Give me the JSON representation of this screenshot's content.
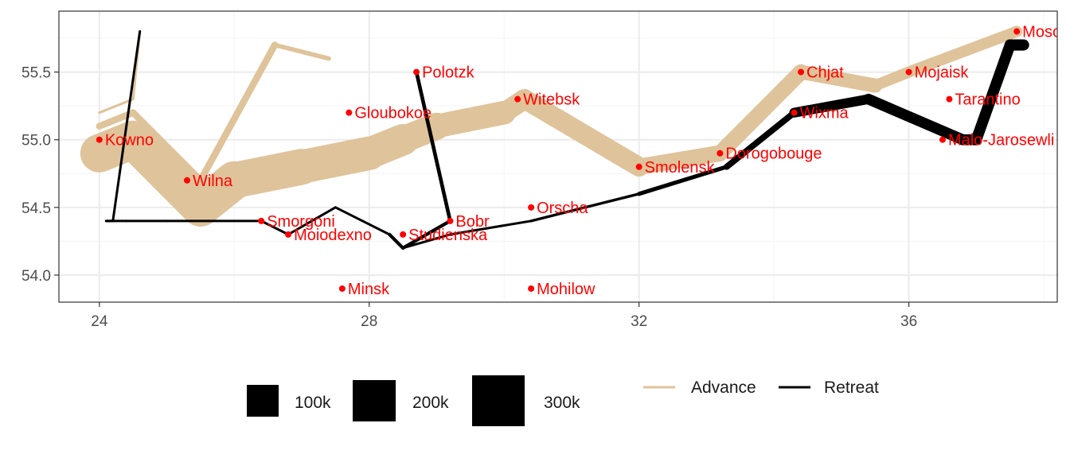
{
  "chart_data": {
    "type": "line",
    "title": "",
    "xlabel": "",
    "ylabel": "",
    "xlim": [
      23.4,
      38.2
    ],
    "ylim": [
      53.8,
      55.95
    ],
    "x_ticks": [
      24,
      28,
      32,
      36
    ],
    "y_ticks": [
      54.0,
      54.5,
      55.0,
      55.5
    ],
    "grid": true,
    "legend_placement": "bottom",
    "colors": {
      "advance": "#DFC39A",
      "retreat": "#000000",
      "city": "#ff0000",
      "grid_major": "#ebebeb",
      "grid_minor": "#f4f4f4",
      "panel_border": "#333333"
    },
    "series": [
      {
        "name": "Advance",
        "group": 1,
        "points": [
          {
            "x": 24.0,
            "y": 54.9,
            "survivors": 340000
          },
          {
            "x": 24.5,
            "y": 55.0,
            "survivors": 340000
          },
          {
            "x": 25.5,
            "y": 54.5,
            "survivors": 340000
          },
          {
            "x": 26.0,
            "y": 54.7,
            "survivors": 320000
          },
          {
            "x": 27.0,
            "y": 54.8,
            "survivors": 300000
          },
          {
            "x": 28.0,
            "y": 54.9,
            "survivors": 280000
          },
          {
            "x": 28.5,
            "y": 55.0,
            "survivors": 240000
          },
          {
            "x": 29.0,
            "y": 55.1,
            "survivors": 210000
          },
          {
            "x": 30.0,
            "y": 55.2,
            "survivors": 180000
          },
          {
            "x": 30.3,
            "y": 55.3,
            "survivors": 175000
          },
          {
            "x": 32.0,
            "y": 54.8,
            "survivors": 145000
          },
          {
            "x": 33.2,
            "y": 54.9,
            "survivors": 140000
          },
          {
            "x": 34.4,
            "y": 55.5,
            "survivors": 127100
          },
          {
            "x": 35.5,
            "y": 55.4,
            "survivors": 100000
          },
          {
            "x": 36.0,
            "y": 55.5,
            "survivors": 100000
          },
          {
            "x": 37.6,
            "y": 55.8,
            "survivors": 100000
          }
        ]
      },
      {
        "name": "Retreat",
        "group": 1,
        "points": [
          {
            "x": 37.7,
            "y": 55.7,
            "survivors": 100000
          },
          {
            "x": 37.5,
            "y": 55.7,
            "survivors": 98000
          },
          {
            "x": 37.0,
            "y": 55.0,
            "survivors": 97000
          },
          {
            "x": 36.8,
            "y": 55.0,
            "survivors": 96000
          },
          {
            "x": 35.4,
            "y": 55.3,
            "survivors": 87000
          },
          {
            "x": 34.3,
            "y": 55.2,
            "survivors": 55000
          },
          {
            "x": 33.3,
            "y": 54.8,
            "survivors": 37000
          },
          {
            "x": 32.0,
            "y": 54.6,
            "survivors": 24000
          },
          {
            "x": 30.4,
            "y": 54.4,
            "survivors": 20000
          },
          {
            "x": 29.2,
            "y": 54.3,
            "survivors": 20000
          },
          {
            "x": 28.5,
            "y": 54.2,
            "survivors": 20000
          },
          {
            "x": 28.3,
            "y": 54.3,
            "survivors": 20000
          },
          {
            "x": 27.5,
            "y": 54.5,
            "survivors": 20000
          },
          {
            "x": 26.8,
            "y": 54.3,
            "survivors": 12000
          },
          {
            "x": 26.4,
            "y": 54.4,
            "survivors": 14000
          },
          {
            "x": 25.0,
            "y": 54.4,
            "survivors": 8000
          },
          {
            "x": 24.4,
            "y": 54.4,
            "survivors": 4000
          },
          {
            "x": 24.2,
            "y": 54.4,
            "survivors": 4000
          },
          {
            "x": 24.1,
            "y": 54.4,
            "survivors": 4000
          }
        ]
      },
      {
        "name": "Advance",
        "group": 2,
        "points": [
          {
            "x": 24.0,
            "y": 55.1,
            "survivors": 60000
          },
          {
            "x": 24.5,
            "y": 55.2,
            "survivors": 60000
          },
          {
            "x": 25.5,
            "y": 54.7,
            "survivors": 60000
          },
          {
            "x": 26.6,
            "y": 55.7,
            "survivors": 40000
          },
          {
            "x": 27.4,
            "y": 55.6,
            "survivors": 33000
          }
        ]
      },
      {
        "name": "Retreat",
        "group": 2,
        "points": [
          {
            "x": 28.7,
            "y": 55.5,
            "survivors": 33000
          },
          {
            "x": 29.2,
            "y": 54.4,
            "survivors": 30000
          },
          {
            "x": 28.5,
            "y": 54.2,
            "survivors": 30000
          },
          {
            "x": 28.3,
            "y": 54.3,
            "survivors": 28000
          }
        ]
      },
      {
        "name": "Advance",
        "group": 3,
        "points": [
          {
            "x": 24.0,
            "y": 55.2,
            "survivors": 22000
          },
          {
            "x": 24.5,
            "y": 55.3,
            "survivors": 22000
          },
          {
            "x": 24.6,
            "y": 55.8,
            "survivors": 6000
          }
        ]
      },
      {
        "name": "Retreat",
        "group": 3,
        "points": [
          {
            "x": 24.6,
            "y": 55.8,
            "survivors": 6000
          },
          {
            "x": 24.2,
            "y": 54.4,
            "survivors": 6000
          },
          {
            "x": 24.1,
            "y": 54.4,
            "survivors": 6000
          }
        ]
      }
    ],
    "cities": [
      {
        "name": "Kowno",
        "x": 24.0,
        "y": 55.0
      },
      {
        "name": "Wilna",
        "x": 25.3,
        "y": 54.7
      },
      {
        "name": "Smorgoni",
        "x": 26.4,
        "y": 54.4
      },
      {
        "name": "Moiodexno",
        "x": 26.8,
        "y": 54.3
      },
      {
        "name": "Gloubokoe",
        "x": 27.7,
        "y": 55.2
      },
      {
        "name": "Minsk",
        "x": 27.6,
        "y": 53.9
      },
      {
        "name": "Studienska",
        "x": 28.5,
        "y": 54.3
      },
      {
        "name": "Polotzk",
        "x": 28.7,
        "y": 55.5
      },
      {
        "name": "Bobr",
        "x": 29.2,
        "y": 54.4
      },
      {
        "name": "Witebsk",
        "x": 30.2,
        "y": 55.3
      },
      {
        "name": "Orscha",
        "x": 30.4,
        "y": 54.5
      },
      {
        "name": "Mohilow",
        "x": 30.4,
        "y": 53.9
      },
      {
        "name": "Smolensk",
        "x": 32.0,
        "y": 54.8
      },
      {
        "name": "Dorogobouge",
        "x": 33.2,
        "y": 54.9
      },
      {
        "name": "Wixma",
        "x": 34.3,
        "y": 55.2
      },
      {
        "name": "Chjat",
        "x": 34.4,
        "y": 55.5
      },
      {
        "name": "Mojaisk",
        "x": 36.0,
        "y": 55.5
      },
      {
        "name": "Tarantino",
        "x": 36.6,
        "y": 55.3
      },
      {
        "name": "Malo-Jarosewli",
        "x": 36.5,
        "y": 55.0
      },
      {
        "name": "Moscou",
        "x": 37.6,
        "y": 55.8
      }
    ],
    "legend": {
      "size": [
        {
          "label": "100k",
          "value": 100000
        },
        {
          "label": "200k",
          "value": 200000
        },
        {
          "label": "300k",
          "value": 300000
        }
      ],
      "direction": [
        {
          "label": "Advance",
          "color": "#DFC39A"
        },
        {
          "label": "Retreat",
          "color": "#000000"
        }
      ]
    }
  }
}
